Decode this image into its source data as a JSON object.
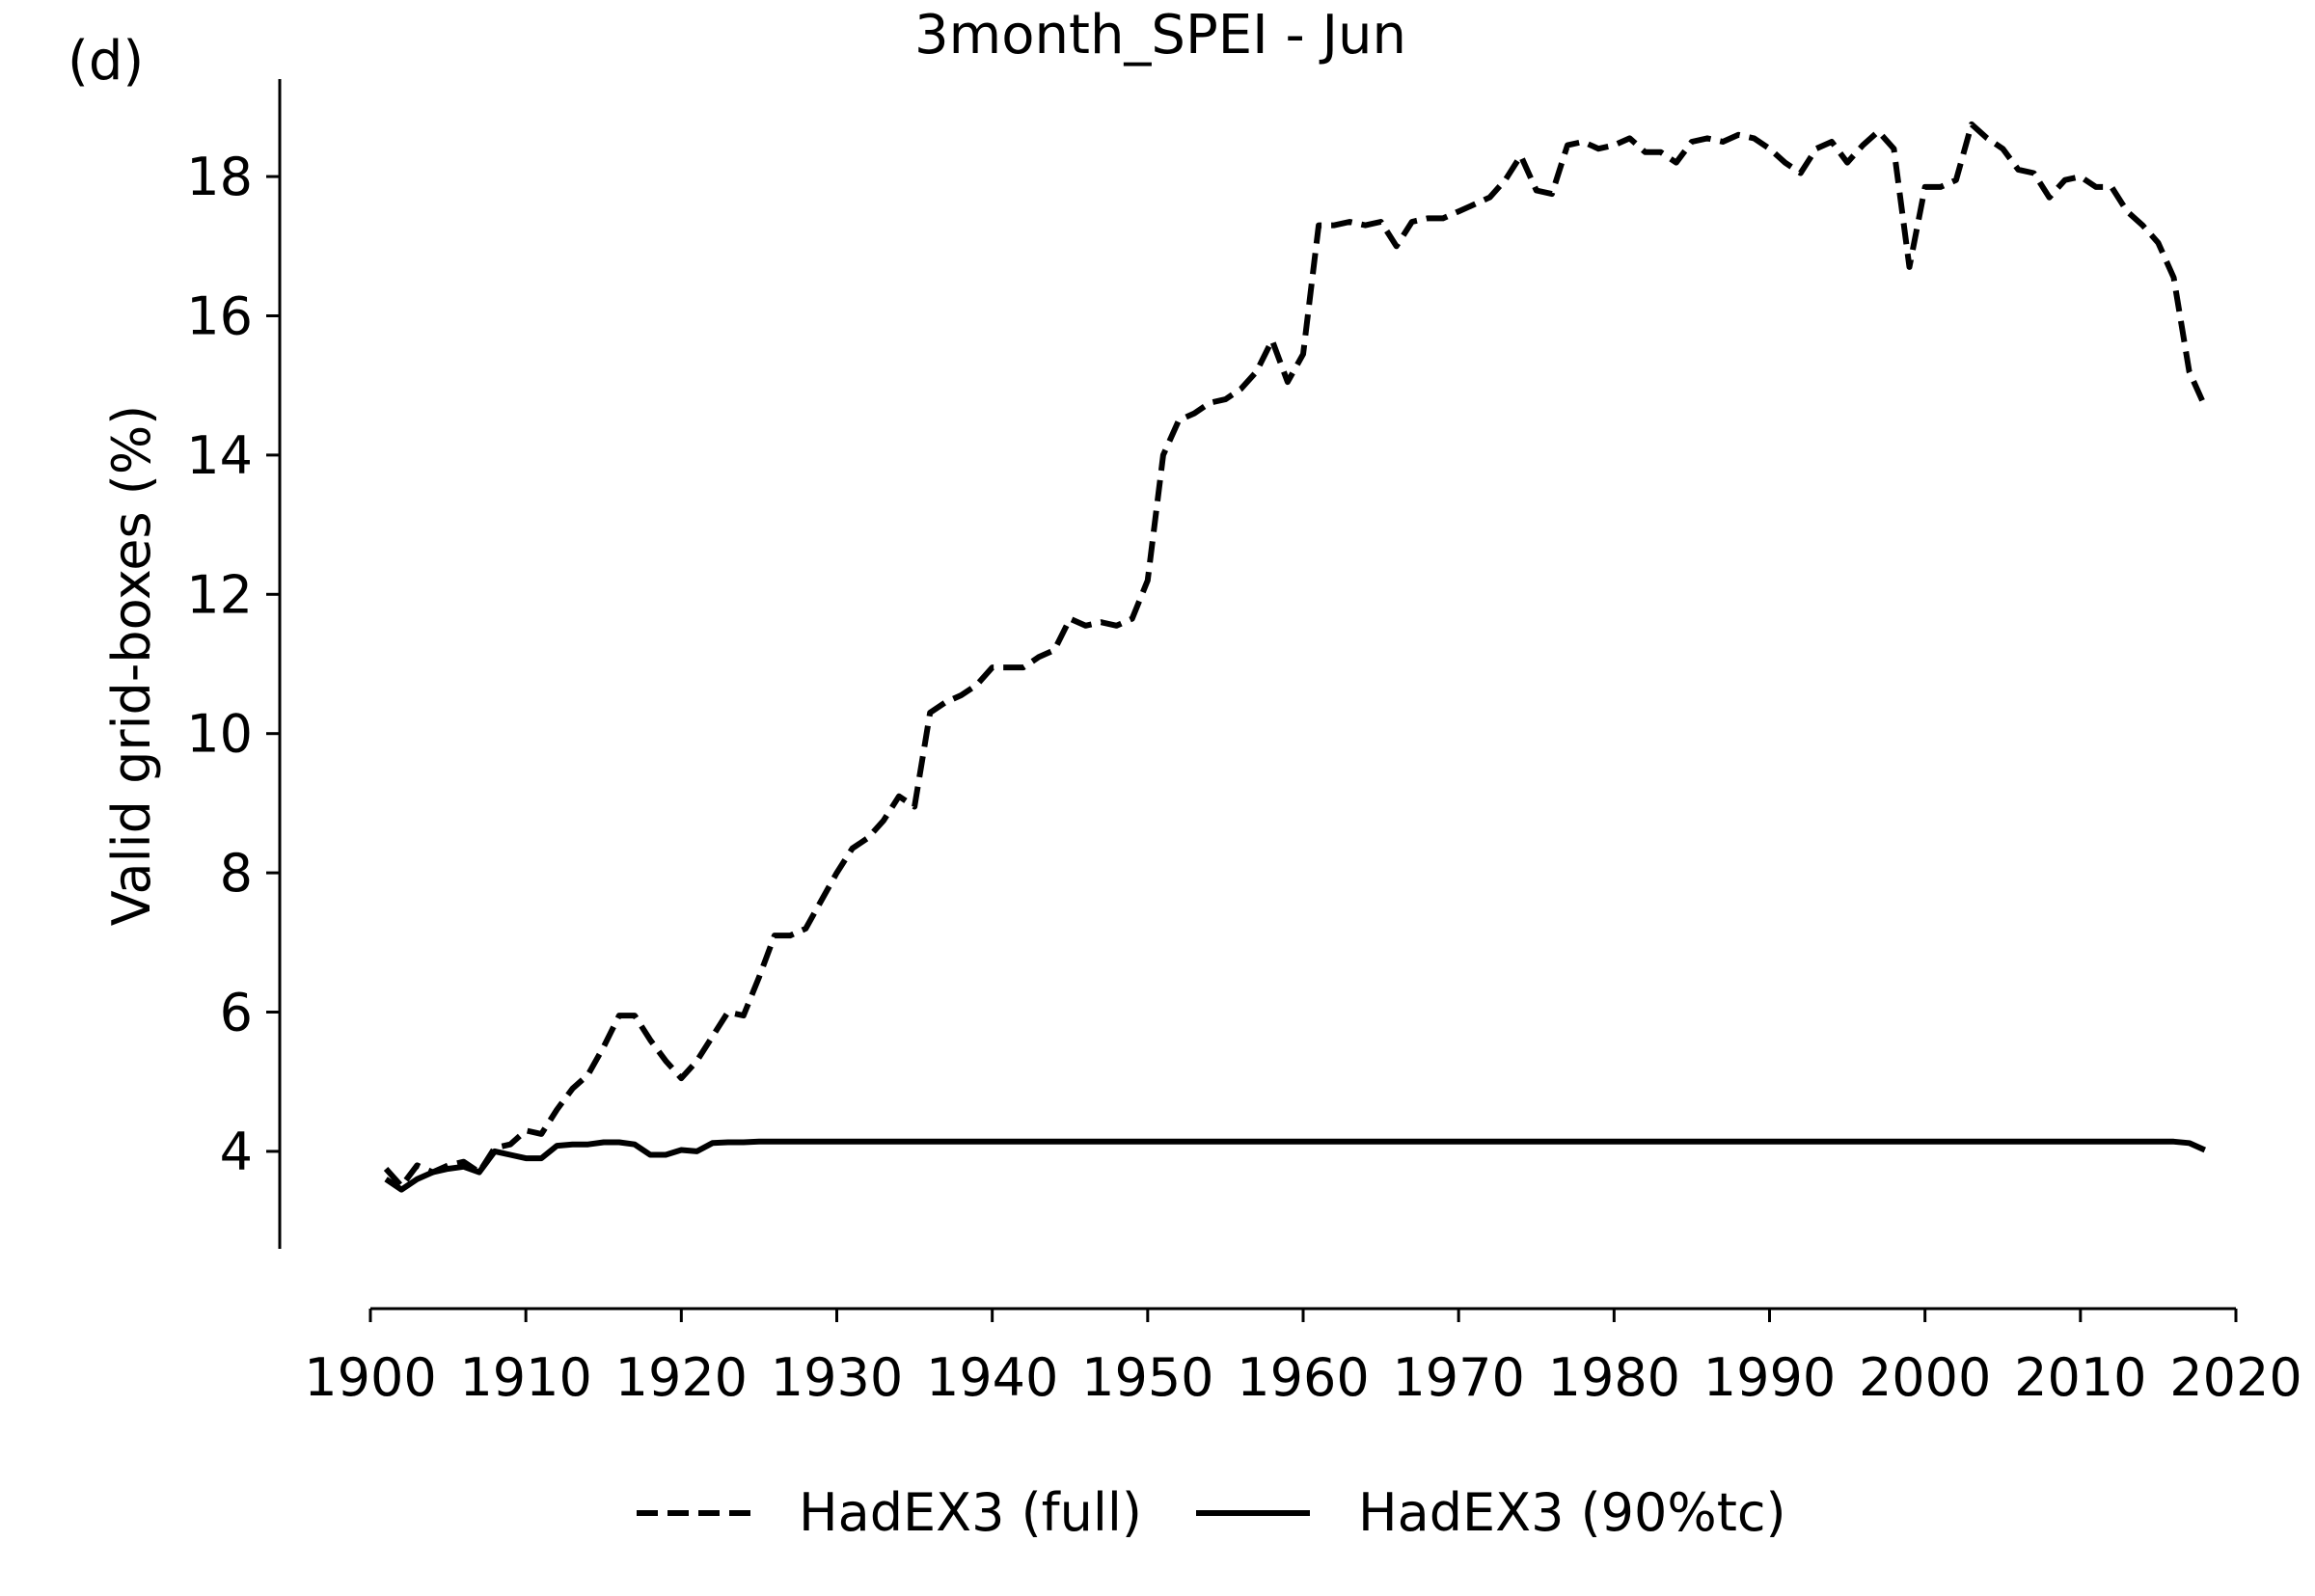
{
  "panel_label": "(d)",
  "chart_data": {
    "type": "line",
    "title": "3month_SPEI - Jun",
    "xlabel": "",
    "ylabel": "Valid grid-boxes (%)",
    "xlim": [
      1900,
      2020
    ],
    "ylim": [
      2.6,
      19.4
    ],
    "x_ticks": [
      1900,
      1910,
      1920,
      1930,
      1940,
      1950,
      1960,
      1970,
      1980,
      1990,
      2000,
      2010,
      2020
    ],
    "y_ticks": [
      4,
      6,
      8,
      10,
      12,
      14,
      16,
      18
    ],
    "grid": false,
    "legend_position": "bottom-center",
    "series": [
      {
        "name": "HadEX3 (full)",
        "style": "dashed",
        "color": "#000000",
        "x": [
          1901,
          1902,
          1903,
          1904,
          1905,
          1906,
          1907,
          1908,
          1909,
          1910,
          1911,
          1912,
          1913,
          1914,
          1915,
          1916,
          1917,
          1918,
          1919,
          1920,
          1921,
          1922,
          1923,
          1924,
          1925,
          1926,
          1927,
          1928,
          1929,
          1930,
          1931,
          1932,
          1933,
          1934,
          1935,
          1936,
          1937,
          1938,
          1939,
          1940,
          1941,
          1942,
          1943,
          1944,
          1945,
          1946,
          1947,
          1948,
          1949,
          1950,
          1951,
          1952,
          1953,
          1954,
          1955,
          1956,
          1957,
          1958,
          1959,
          1960,
          1961,
          1962,
          1963,
          1964,
          1965,
          1966,
          1967,
          1968,
          1969,
          1970,
          1971,
          1972,
          1973,
          1974,
          1975,
          1976,
          1977,
          1978,
          1979,
          1980,
          1981,
          1982,
          1983,
          1984,
          1985,
          1986,
          1987,
          1988,
          1989,
          1990,
          1991,
          1992,
          1993,
          1994,
          1995,
          1996,
          1997,
          1998,
          1999,
          2000,
          2001,
          2002,
          2003,
          2004,
          2005,
          2006,
          2007,
          2008,
          2009,
          2010,
          2011,
          2012,
          2013,
          2014,
          2015,
          2016,
          2017,
          2018
        ],
        "y": [
          3.75,
          3.5,
          3.8,
          3.7,
          3.8,
          3.85,
          3.7,
          4.05,
          4.1,
          4.3,
          4.25,
          4.6,
          4.9,
          5.1,
          5.5,
          5.95,
          5.95,
          5.6,
          5.3,
          5.05,
          5.3,
          5.65,
          6.0,
          5.95,
          6.5,
          7.1,
          7.1,
          7.2,
          7.6,
          8.0,
          8.35,
          8.5,
          8.75,
          9.1,
          8.95,
          10.3,
          10.45,
          10.55,
          10.7,
          10.95,
          10.95,
          10.95,
          11.1,
          11.2,
          11.65,
          11.55,
          11.6,
          11.55,
          11.65,
          12.2,
          14.0,
          14.5,
          14.6,
          14.75,
          14.8,
          14.95,
          15.2,
          15.65,
          15.05,
          15.45,
          17.3,
          17.3,
          17.35,
          17.3,
          17.35,
          17.0,
          17.35,
          17.4,
          17.4,
          17.5,
          17.6,
          17.7,
          17.95,
          18.3,
          17.8,
          17.75,
          18.45,
          18.5,
          18.4,
          18.45,
          18.55,
          18.35,
          18.35,
          18.2,
          18.5,
          18.55,
          18.5,
          18.6,
          18.55,
          18.4,
          18.2,
          18.05,
          18.4,
          18.5,
          18.2,
          18.45,
          18.65,
          18.4,
          16.7,
          17.85,
          17.85,
          17.95,
          18.75,
          18.55,
          18.4,
          18.1,
          18.05,
          17.7,
          17.95,
          18.0,
          17.85,
          17.85,
          17.5,
          17.3,
          17.05,
          16.55,
          15.2,
          14.7
        ]
      },
      {
        "name": "HadEX3 (90%tc)",
        "style": "solid",
        "color": "#000000",
        "x": [
          1901,
          1902,
          1903,
          1904,
          1905,
          1906,
          1907,
          1908,
          1909,
          1910,
          1911,
          1912,
          1913,
          1914,
          1915,
          1916,
          1917,
          1918,
          1919,
          1920,
          1921,
          1922,
          1923,
          1924,
          1925,
          1926,
          1927,
          1928,
          1929,
          1930,
          1935,
          1940,
          1945,
          1950,
          1960,
          1970,
          1980,
          1990,
          2000,
          2010,
          2015,
          2016,
          2017,
          2018
        ],
        "y": [
          3.6,
          3.45,
          3.6,
          3.7,
          3.75,
          3.78,
          3.7,
          4.0,
          3.95,
          3.9,
          3.9,
          4.08,
          4.1,
          4.1,
          4.13,
          4.13,
          4.1,
          3.95,
          3.95,
          4.02,
          4.0,
          4.12,
          4.13,
          4.13,
          4.14,
          4.14,
          4.14,
          4.14,
          4.14,
          4.14,
          4.14,
          4.14,
          4.14,
          4.14,
          4.14,
          4.14,
          4.14,
          4.14,
          4.14,
          4.14,
          4.14,
          4.14,
          4.12,
          4.02
        ]
      }
    ]
  }
}
